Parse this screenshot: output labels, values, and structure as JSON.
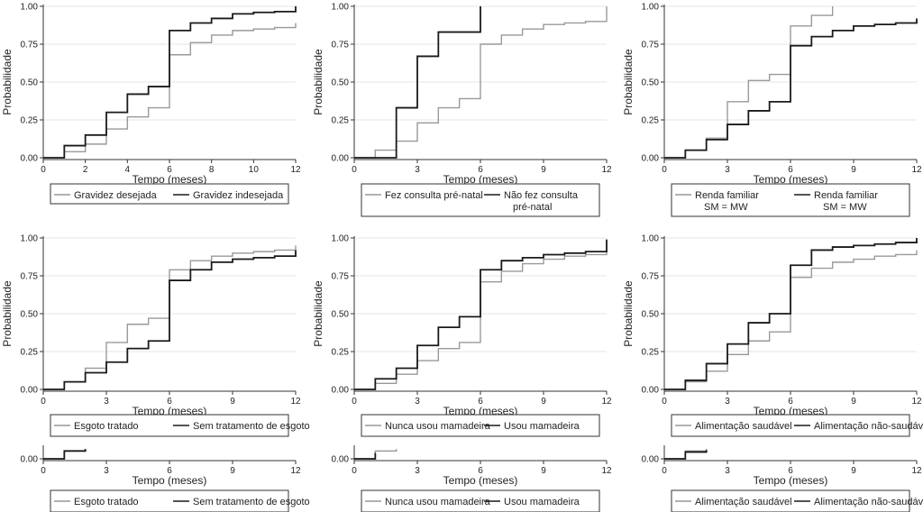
{
  "chart_data": [
    {
      "type": "line",
      "step": true,
      "xlabel": "Tempo (meses)",
      "ylabel": "Probabilidade",
      "xlim": [
        0,
        12
      ],
      "ylim": [
        0,
        1
      ],
      "xticks": [
        0,
        2,
        4,
        6,
        8,
        10,
        12
      ],
      "yticks": [
        "0.00",
        "0.25",
        "0.50",
        "0.75",
        "1.00"
      ],
      "legend": [
        "Gravidez desejada",
        "Gravidez indesejada"
      ],
      "series": [
        {
          "name": "Gravidez desejada",
          "color": "#999999",
          "x": [
            0,
            1,
            2,
            3,
            4,
            5,
            6,
            7,
            8,
            9,
            10,
            11,
            12
          ],
          "y": [
            0,
            0.04,
            0.09,
            0.19,
            0.27,
            0.33,
            0.68,
            0.76,
            0.81,
            0.84,
            0.85,
            0.86,
            0.86
          ]
        },
        {
          "name": "Gravidez indesejada",
          "color": "#1a1a1a",
          "x": [
            0,
            1,
            2,
            3,
            4,
            5,
            6,
            7,
            8,
            9,
            10,
            11,
            12
          ],
          "y": [
            0,
            0.08,
            0.15,
            0.3,
            0.42,
            0.47,
            0.84,
            0.89,
            0.92,
            0.95,
            0.96,
            0.965,
            0.97
          ]
        }
      ]
    },
    {
      "type": "line",
      "step": true,
      "xlabel": "Tempo (meses)",
      "ylabel": "Probabilidade",
      "xlim": [
        0,
        12
      ],
      "ylim": [
        0,
        1
      ],
      "xticks": [
        0,
        3,
        6,
        9,
        12
      ],
      "yticks": [
        "0.00",
        "0.25",
        "0.50",
        "0.75",
        "1.00"
      ],
      "legend": [
        "Fez consulta pré-natal",
        "Não fez consulta\npré-natal"
      ],
      "series": [
        {
          "name": "Fez consulta pré-natal",
          "color": "#999999",
          "x": [
            0,
            1,
            2,
            3,
            4,
            5,
            6,
            7,
            8,
            9,
            10,
            11,
            12
          ],
          "y": [
            0,
            0.05,
            0.11,
            0.23,
            0.33,
            0.39,
            0.75,
            0.81,
            0.85,
            0.88,
            0.89,
            0.9,
            1.0
          ]
        },
        {
          "name": "Não fez consulta pré-natal",
          "color": "#1a1a1a",
          "x": [
            0,
            2,
            3,
            4,
            6
          ],
          "y": [
            0,
            0.33,
            0.67,
            0.83,
            1.0
          ]
        }
      ]
    },
    {
      "type": "line",
      "step": true,
      "xlabel": "Tempo (meses)",
      "ylabel": "Probabilidade",
      "xlim": [
        0,
        12
      ],
      "ylim": [
        0,
        1
      ],
      "xticks": [
        0,
        3,
        6,
        9,
        12
      ],
      "yticks": [
        "0.00",
        "0.25",
        "0.50",
        "0.75",
        "1.00"
      ],
      "legend": [
        "Renda familiar\nSM = MW",
        "Renda familiar\nSM = MW"
      ],
      "series": [
        {
          "name": "Renda familiar SM = MW",
          "color": "#999999",
          "x": [
            0,
            1,
            2,
            3,
            4,
            5,
            6,
            7,
            8
          ],
          "y": [
            0,
            0.05,
            0.13,
            0.37,
            0.51,
            0.55,
            0.87,
            0.94,
            1.0
          ]
        },
        {
          "name": "Renda familiar SM = MW",
          "color": "#1a1a1a",
          "x": [
            0,
            1,
            2,
            3,
            4,
            5,
            6,
            7,
            8,
            9,
            10,
            11,
            12
          ],
          "y": [
            0,
            0.05,
            0.12,
            0.22,
            0.31,
            0.37,
            0.74,
            0.8,
            0.84,
            0.87,
            0.88,
            0.89,
            0.89
          ]
        }
      ]
    },
    {
      "type": "line",
      "step": true,
      "xlabel": "Tempo (meses)",
      "ylabel": "Probabilidade",
      "xlim": [
        0,
        12
      ],
      "ylim": [
        0,
        1
      ],
      "xticks": [
        0,
        3,
        6,
        9,
        12
      ],
      "yticks": [
        "0.00",
        "0.25",
        "0.50",
        "0.75",
        "1.00"
      ],
      "legend": [
        "Esgoto tratado",
        "Sem tratamento de esgoto"
      ],
      "series": [
        {
          "name": "Esgoto tratado",
          "color": "#999999",
          "x": [
            0,
            1,
            2,
            3,
            4,
            5,
            6,
            7,
            8,
            9,
            10,
            11,
            12
          ],
          "y": [
            0,
            0.05,
            0.14,
            0.31,
            0.43,
            0.47,
            0.79,
            0.85,
            0.88,
            0.9,
            0.91,
            0.92,
            0.92
          ]
        },
        {
          "name": "Sem tratamento de esgoto",
          "color": "#1a1a1a",
          "x": [
            0,
            1,
            2,
            3,
            4,
            5,
            6,
            7,
            8,
            9,
            10,
            11,
            12
          ],
          "y": [
            0,
            0.05,
            0.11,
            0.18,
            0.27,
            0.32,
            0.72,
            0.79,
            0.84,
            0.86,
            0.87,
            0.88,
            0.89
          ]
        }
      ]
    },
    {
      "type": "line",
      "step": true,
      "xlabel": "Tempo (meses)",
      "ylabel": "Probabilidade",
      "xlim": [
        0,
        12
      ],
      "ylim": [
        0,
        1
      ],
      "xticks": [
        0,
        3,
        6,
        9,
        12
      ],
      "yticks": [
        "0.00",
        "0.25",
        "0.50",
        "0.75",
        "1.00"
      ],
      "legend": [
        "Nunca usou mamadeira",
        "Usou mamadeira"
      ],
      "series": [
        {
          "name": "Nunca usou mamadeira",
          "color": "#999999",
          "x": [
            0,
            1,
            2,
            3,
            4,
            5,
            6,
            7,
            8,
            9,
            10,
            11,
            12
          ],
          "y": [
            0,
            0.04,
            0.1,
            0.19,
            0.27,
            0.31,
            0.71,
            0.78,
            0.83,
            0.86,
            0.88,
            0.89,
            0.9
          ]
        },
        {
          "name": "Usou mamadeira",
          "color": "#1a1a1a",
          "x": [
            0,
            1,
            2,
            3,
            4,
            5,
            6,
            7,
            8,
            9,
            10,
            11,
            12
          ],
          "y": [
            0,
            0.07,
            0.14,
            0.29,
            0.41,
            0.48,
            0.79,
            0.85,
            0.87,
            0.89,
            0.9,
            0.91,
            0.96
          ]
        }
      ]
    },
    {
      "type": "line",
      "step": true,
      "xlabel": "Tempo (meses)",
      "ylabel": "Probabilidade",
      "xlim": [
        0,
        12
      ],
      "ylim": [
        0,
        1
      ],
      "xticks": [
        0,
        3,
        6,
        9,
        12
      ],
      "yticks": [
        "0.00",
        "0.25",
        "0.50",
        "0.75",
        "1.00"
      ],
      "legend": [
        "Alimentação saudável",
        "Alimentação não-saudável"
      ],
      "series": [
        {
          "name": "Alimentação saudável",
          "color": "#999999",
          "x": [
            0,
            1,
            2,
            3,
            4,
            5,
            6,
            7,
            8,
            9,
            10,
            11,
            12
          ],
          "y": [
            0,
            0.05,
            0.12,
            0.23,
            0.32,
            0.38,
            0.74,
            0.8,
            0.84,
            0.86,
            0.88,
            0.89,
            0.89
          ]
        },
        {
          "name": "Alimentação não-saudável",
          "color": "#1a1a1a",
          "x": [
            0,
            1,
            2,
            3,
            4,
            5,
            6,
            7,
            8,
            9,
            10,
            11,
            12
          ],
          "y": [
            0,
            0.06,
            0.17,
            0.3,
            0.44,
            0.5,
            0.82,
            0.92,
            0.94,
            0.95,
            0.96,
            0.97,
            0.99
          ]
        }
      ]
    },
    {
      "type": "line",
      "step": true,
      "xlabel": "Tempo (meses)",
      "xlim": [
        0,
        12
      ],
      "ylim": [
        0,
        0.06
      ],
      "xticks": [
        0,
        3,
        6,
        9,
        12
      ],
      "yticks": [
        "0.00"
      ],
      "legend": [
        "Esgoto tratado",
        "Sem tratamento de esgoto"
      ],
      "series": [
        {
          "name": "Esgoto tratado",
          "color": "#999999",
          "x": [
            0,
            1,
            2
          ],
          "y": [
            0,
            0.04,
            0.05
          ]
        },
        {
          "name": "Sem tratamento de esgoto",
          "color": "#1a1a1a",
          "x": [
            0,
            1,
            2
          ],
          "y": [
            0,
            0.04,
            0.05
          ]
        }
      ]
    },
    {
      "type": "line",
      "step": true,
      "xlabel": "Tempo (meses)",
      "xlim": [
        0,
        12
      ],
      "ylim": [
        0,
        0.06
      ],
      "xticks": [
        0,
        3,
        6,
        9,
        12
      ],
      "yticks": [
        "0.00"
      ],
      "legend": [
        "Nunca usou mamadeira",
        "Usou mamadeira"
      ],
      "series": [
        {
          "name": "Nunca usou mamadeira",
          "color": "#999999",
          "x": [
            0,
            1,
            2
          ],
          "y": [
            0,
            0.04,
            0.05
          ]
        },
        {
          "name": "Usou mamadeira",
          "color": "#1a1a1a",
          "x": [
            0,
            1
          ],
          "y": [
            0,
            0.03
          ]
        }
      ]
    },
    {
      "type": "line",
      "step": true,
      "xlabel": "Tempo (meses)",
      "xlim": [
        0,
        12
      ],
      "ylim": [
        0,
        0.06
      ],
      "xticks": [
        0,
        3,
        6,
        9,
        12
      ],
      "yticks": [
        "0.00"
      ],
      "legend": [
        "Alimentação saudável",
        "Alimentação não-saudável"
      ],
      "series": [
        {
          "name": "Alimentação saudável",
          "color": "#999999",
          "x": [
            0,
            1,
            2
          ],
          "y": [
            0,
            0.04,
            0.05
          ]
        },
        {
          "name": "Alimentação não-saudável",
          "color": "#1a1a1a",
          "x": [
            0,
            1,
            2
          ],
          "y": [
            0,
            0.035,
            0.045
          ]
        }
      ]
    }
  ]
}
